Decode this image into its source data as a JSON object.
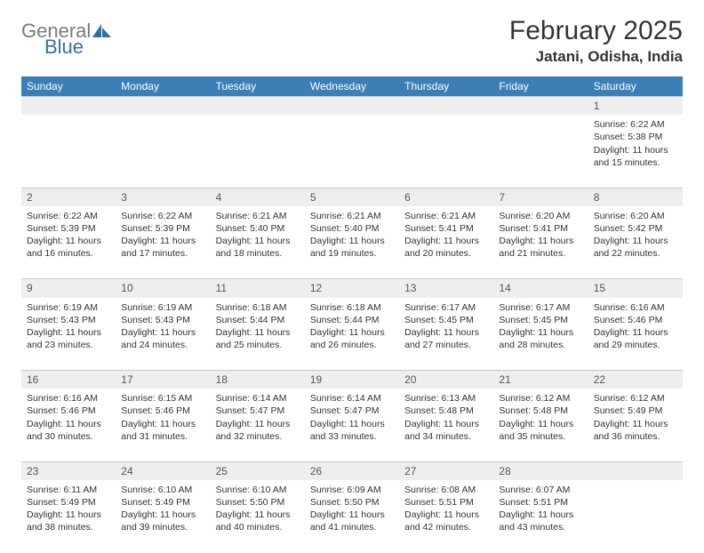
{
  "brand": {
    "general": "General",
    "blue": "Blue"
  },
  "month_title": "February 2025",
  "location": "Jatani, Odisha, India",
  "colors": {
    "header_bg": "#3b7fb6",
    "header_text": "#ffffff",
    "daynum_bg": "#eeeeee",
    "body_text": "#333333",
    "logo_gray": "#7a7a7a",
    "logo_blue": "#2f6fa8",
    "page_bg": "#ffffff"
  },
  "weekdays": [
    "Sunday",
    "Monday",
    "Tuesday",
    "Wednesday",
    "Thursday",
    "Friday",
    "Saturday"
  ],
  "weeks": [
    {
      "nums": [
        "",
        "",
        "",
        "",
        "",
        "",
        "1"
      ],
      "cells": [
        null,
        null,
        null,
        null,
        null,
        null,
        {
          "sunrise": "Sunrise: 6:22 AM",
          "sunset": "Sunset: 5:38 PM",
          "day1": "Daylight: 11 hours",
          "day2": "and 15 minutes."
        }
      ]
    },
    {
      "nums": [
        "2",
        "3",
        "4",
        "5",
        "6",
        "7",
        "8"
      ],
      "cells": [
        {
          "sunrise": "Sunrise: 6:22 AM",
          "sunset": "Sunset: 5:39 PM",
          "day1": "Daylight: 11 hours",
          "day2": "and 16 minutes."
        },
        {
          "sunrise": "Sunrise: 6:22 AM",
          "sunset": "Sunset: 5:39 PM",
          "day1": "Daylight: 11 hours",
          "day2": "and 17 minutes."
        },
        {
          "sunrise": "Sunrise: 6:21 AM",
          "sunset": "Sunset: 5:40 PM",
          "day1": "Daylight: 11 hours",
          "day2": "and 18 minutes."
        },
        {
          "sunrise": "Sunrise: 6:21 AM",
          "sunset": "Sunset: 5:40 PM",
          "day1": "Daylight: 11 hours",
          "day2": "and 19 minutes."
        },
        {
          "sunrise": "Sunrise: 6:21 AM",
          "sunset": "Sunset: 5:41 PM",
          "day1": "Daylight: 11 hours",
          "day2": "and 20 minutes."
        },
        {
          "sunrise": "Sunrise: 6:20 AM",
          "sunset": "Sunset: 5:41 PM",
          "day1": "Daylight: 11 hours",
          "day2": "and 21 minutes."
        },
        {
          "sunrise": "Sunrise: 6:20 AM",
          "sunset": "Sunset: 5:42 PM",
          "day1": "Daylight: 11 hours",
          "day2": "and 22 minutes."
        }
      ]
    },
    {
      "nums": [
        "9",
        "10",
        "11",
        "12",
        "13",
        "14",
        "15"
      ],
      "cells": [
        {
          "sunrise": "Sunrise: 6:19 AM",
          "sunset": "Sunset: 5:43 PM",
          "day1": "Daylight: 11 hours",
          "day2": "and 23 minutes."
        },
        {
          "sunrise": "Sunrise: 6:19 AM",
          "sunset": "Sunset: 5:43 PM",
          "day1": "Daylight: 11 hours",
          "day2": "and 24 minutes."
        },
        {
          "sunrise": "Sunrise: 6:18 AM",
          "sunset": "Sunset: 5:44 PM",
          "day1": "Daylight: 11 hours",
          "day2": "and 25 minutes."
        },
        {
          "sunrise": "Sunrise: 6:18 AM",
          "sunset": "Sunset: 5:44 PM",
          "day1": "Daylight: 11 hours",
          "day2": "and 26 minutes."
        },
        {
          "sunrise": "Sunrise: 6:17 AM",
          "sunset": "Sunset: 5:45 PM",
          "day1": "Daylight: 11 hours",
          "day2": "and 27 minutes."
        },
        {
          "sunrise": "Sunrise: 6:17 AM",
          "sunset": "Sunset: 5:45 PM",
          "day1": "Daylight: 11 hours",
          "day2": "and 28 minutes."
        },
        {
          "sunrise": "Sunrise: 6:16 AM",
          "sunset": "Sunset: 5:46 PM",
          "day1": "Daylight: 11 hours",
          "day2": "and 29 minutes."
        }
      ]
    },
    {
      "nums": [
        "16",
        "17",
        "18",
        "19",
        "20",
        "21",
        "22"
      ],
      "cells": [
        {
          "sunrise": "Sunrise: 6:16 AM",
          "sunset": "Sunset: 5:46 PM",
          "day1": "Daylight: 11 hours",
          "day2": "and 30 minutes."
        },
        {
          "sunrise": "Sunrise: 6:15 AM",
          "sunset": "Sunset: 5:46 PM",
          "day1": "Daylight: 11 hours",
          "day2": "and 31 minutes."
        },
        {
          "sunrise": "Sunrise: 6:14 AM",
          "sunset": "Sunset: 5:47 PM",
          "day1": "Daylight: 11 hours",
          "day2": "and 32 minutes."
        },
        {
          "sunrise": "Sunrise: 6:14 AM",
          "sunset": "Sunset: 5:47 PM",
          "day1": "Daylight: 11 hours",
          "day2": "and 33 minutes."
        },
        {
          "sunrise": "Sunrise: 6:13 AM",
          "sunset": "Sunset: 5:48 PM",
          "day1": "Daylight: 11 hours",
          "day2": "and 34 minutes."
        },
        {
          "sunrise": "Sunrise: 6:12 AM",
          "sunset": "Sunset: 5:48 PM",
          "day1": "Daylight: 11 hours",
          "day2": "and 35 minutes."
        },
        {
          "sunrise": "Sunrise: 6:12 AM",
          "sunset": "Sunset: 5:49 PM",
          "day1": "Daylight: 11 hours",
          "day2": "and 36 minutes."
        }
      ]
    },
    {
      "nums": [
        "23",
        "24",
        "25",
        "26",
        "27",
        "28",
        ""
      ],
      "cells": [
        {
          "sunrise": "Sunrise: 6:11 AM",
          "sunset": "Sunset: 5:49 PM",
          "day1": "Daylight: 11 hours",
          "day2": "and 38 minutes."
        },
        {
          "sunrise": "Sunrise: 6:10 AM",
          "sunset": "Sunset: 5:49 PM",
          "day1": "Daylight: 11 hours",
          "day2": "and 39 minutes."
        },
        {
          "sunrise": "Sunrise: 6:10 AM",
          "sunset": "Sunset: 5:50 PM",
          "day1": "Daylight: 11 hours",
          "day2": "and 40 minutes."
        },
        {
          "sunrise": "Sunrise: 6:09 AM",
          "sunset": "Sunset: 5:50 PM",
          "day1": "Daylight: 11 hours",
          "day2": "and 41 minutes."
        },
        {
          "sunrise": "Sunrise: 6:08 AM",
          "sunset": "Sunset: 5:51 PM",
          "day1": "Daylight: 11 hours",
          "day2": "and 42 minutes."
        },
        {
          "sunrise": "Sunrise: 6:07 AM",
          "sunset": "Sunset: 5:51 PM",
          "day1": "Daylight: 11 hours",
          "day2": "and 43 minutes."
        },
        null
      ]
    }
  ]
}
